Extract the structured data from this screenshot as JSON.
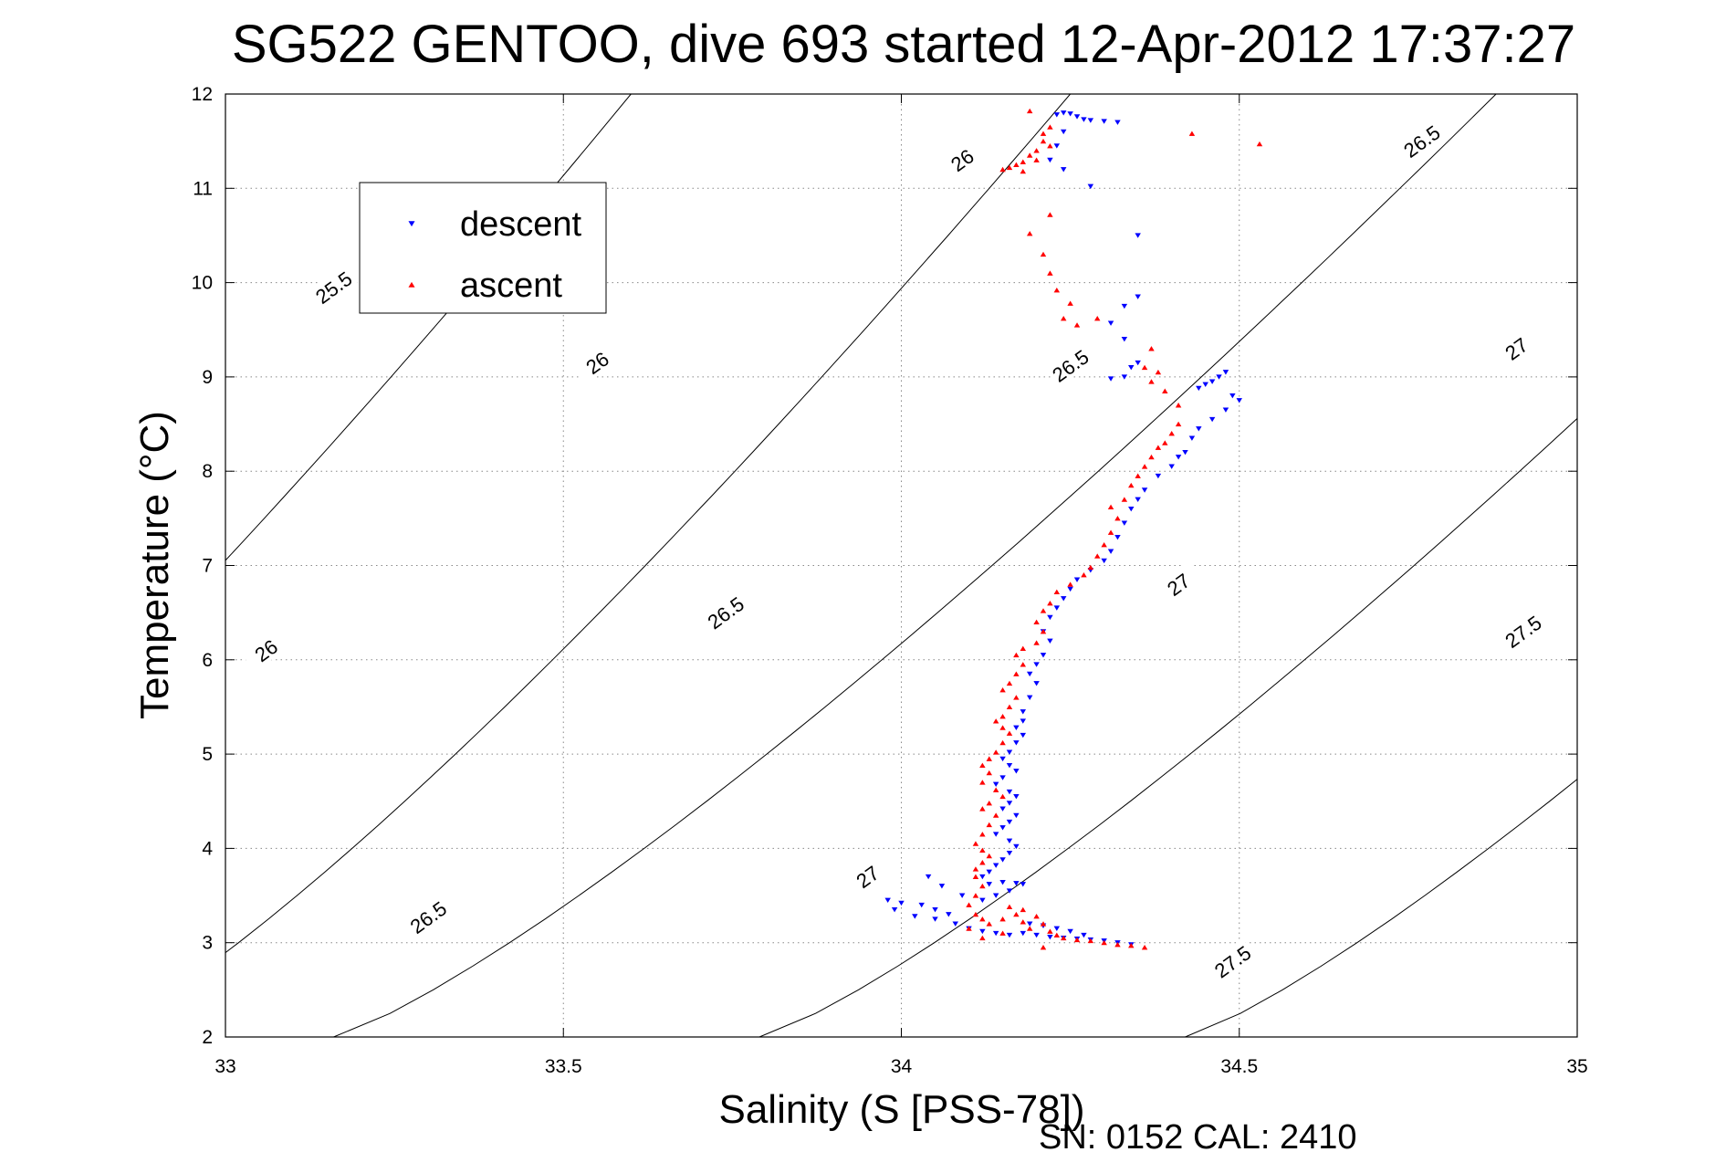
{
  "chart_data": {
    "type": "scatter",
    "title": "SG522 GENTOO, dive 693 started 12-Apr-2012 17:37:27",
    "xlabel": "Salinity (S [PSS-78])",
    "ylabel": "Temperature (°C)",
    "xlim": [
      33,
      35
    ],
    "ylim": [
      2,
      12
    ],
    "xticks": [
      "33",
      "33.5",
      "34",
      "34.5",
      "35"
    ],
    "yticks": [
      "2",
      "3",
      "4",
      "5",
      "6",
      "7",
      "8",
      "9",
      "10",
      "11",
      "12"
    ],
    "grid": "dotted",
    "legend_position": "top-left",
    "footer": "SN: 0152  CAL: 2410",
    "colors": {
      "descent": "#0000ff",
      "ascent": "#ff0000",
      "contour": "#000000"
    },
    "density_contours": [
      {
        "label": "25.5",
        "s_at_t12": 33.6,
        "s_at_t2": 32.2
      },
      {
        "label": "26",
        "s_at_t12": 34.25,
        "s_at_t2": 32.8
      },
      {
        "label": "26.5",
        "s_at_t12": 34.88,
        "s_at_t2": 33.16
      },
      {
        "label": "27",
        "s_at_t12": 35.5,
        "s_at_t2": 33.79
      },
      {
        "label": "27.5",
        "s_at_t12": 36.1,
        "s_at_t2": 34.42
      }
    ],
    "contour_labels": [
      {
        "text": "25.5",
        "s": 33.16,
        "t": 9.95
      },
      {
        "text": "26",
        "s": 33.06,
        "t": 6.1
      },
      {
        "text": "26",
        "s": 33.55,
        "t": 9.15
      },
      {
        "text": "26",
        "s": 34.09,
        "t": 11.3
      },
      {
        "text": "26.5",
        "s": 33.3,
        "t": 3.27
      },
      {
        "text": "26.5",
        "s": 33.74,
        "t": 6.5
      },
      {
        "text": "26.5",
        "s": 34.25,
        "t": 9.12
      },
      {
        "text": "26.5",
        "s": 34.77,
        "t": 11.5
      },
      {
        "text": "27",
        "s": 33.95,
        "t": 3.7
      },
      {
        "text": "27",
        "s": 34.41,
        "t": 6.8
      },
      {
        "text": "27",
        "s": 34.91,
        "t": 9.3
      },
      {
        "text": "27.5",
        "s": 34.49,
        "t": 2.8
      },
      {
        "text": "27.5",
        "s": 34.92,
        "t": 6.3
      }
    ],
    "series": [
      {
        "name": "descent",
        "marker": "triangle-down",
        "points": [
          [
            34.23,
            11.78
          ],
          [
            34.24,
            11.8
          ],
          [
            34.25,
            11.79
          ],
          [
            34.26,
            11.76
          ],
          [
            34.27,
            11.73
          ],
          [
            34.28,
            11.72
          ],
          [
            34.3,
            11.71
          ],
          [
            34.32,
            11.7
          ],
          [
            34.24,
            11.6
          ],
          [
            34.23,
            11.45
          ],
          [
            34.22,
            11.3
          ],
          [
            34.24,
            11.2
          ],
          [
            34.28,
            11.02
          ],
          [
            34.35,
            10.5
          ],
          [
            34.35,
            9.85
          ],
          [
            34.33,
            9.75
          ],
          [
            34.31,
            9.57
          ],
          [
            34.33,
            9.4
          ],
          [
            34.34,
            9.1
          ],
          [
            34.35,
            9.15
          ],
          [
            34.33,
            9.0
          ],
          [
            34.31,
            8.98
          ],
          [
            34.48,
            9.05
          ],
          [
            34.47,
            9.0
          ],
          [
            34.46,
            8.95
          ],
          [
            34.45,
            8.92
          ],
          [
            34.44,
            8.88
          ],
          [
            34.49,
            8.8
          ],
          [
            34.5,
            8.75
          ],
          [
            34.48,
            8.65
          ],
          [
            34.46,
            8.55
          ],
          [
            34.44,
            8.45
          ],
          [
            34.43,
            8.35
          ],
          [
            34.42,
            8.2
          ],
          [
            34.41,
            8.15
          ],
          [
            34.4,
            8.05
          ],
          [
            34.38,
            7.95
          ],
          [
            34.36,
            7.8
          ],
          [
            34.35,
            7.7
          ],
          [
            34.34,
            7.6
          ],
          [
            34.33,
            7.45
          ],
          [
            34.32,
            7.3
          ],
          [
            34.31,
            7.15
          ],
          [
            34.3,
            7.05
          ],
          [
            34.28,
            6.95
          ],
          [
            34.26,
            6.85
          ],
          [
            34.25,
            6.75
          ],
          [
            34.24,
            6.65
          ],
          [
            34.23,
            6.55
          ],
          [
            34.22,
            6.45
          ],
          [
            34.21,
            6.3
          ],
          [
            34.22,
            6.2
          ],
          [
            34.21,
            6.05
          ],
          [
            34.2,
            5.95
          ],
          [
            34.19,
            5.85
          ],
          [
            34.2,
            5.75
          ],
          [
            34.19,
            5.6
          ],
          [
            34.18,
            5.45
          ],
          [
            34.18,
            5.35
          ],
          [
            34.17,
            5.28
          ],
          [
            34.18,
            5.2
          ],
          [
            34.17,
            5.12
          ],
          [
            34.16,
            5.02
          ],
          [
            34.15,
            4.95
          ],
          [
            34.16,
            4.88
          ],
          [
            34.17,
            4.82
          ],
          [
            34.15,
            4.75
          ],
          [
            34.14,
            4.68
          ],
          [
            34.16,
            4.6
          ],
          [
            34.17,
            4.55
          ],
          [
            34.16,
            4.48
          ],
          [
            34.15,
            4.42
          ],
          [
            34.17,
            4.35
          ],
          [
            34.16,
            4.28
          ],
          [
            34.15,
            4.22
          ],
          [
            34.14,
            4.15
          ],
          [
            34.16,
            4.08
          ],
          [
            34.17,
            4.02
          ],
          [
            34.16,
            3.95
          ],
          [
            34.15,
            3.88
          ],
          [
            34.14,
            3.82
          ],
          [
            34.13,
            3.75
          ],
          [
            34.12,
            3.7
          ],
          [
            34.13,
            3.62
          ],
          [
            34.15,
            3.64
          ],
          [
            34.17,
            3.63
          ],
          [
            34.18,
            3.62
          ],
          [
            34.16,
            3.55
          ],
          [
            34.14,
            3.5
          ],
          [
            34.12,
            3.45
          ],
          [
            33.98,
            3.45
          ],
          [
            34.0,
            3.42
          ],
          [
            34.03,
            3.4
          ],
          [
            34.05,
            3.35
          ],
          [
            34.07,
            3.3
          ],
          [
            33.99,
            3.35
          ],
          [
            34.02,
            3.28
          ],
          [
            34.05,
            3.25
          ],
          [
            34.08,
            3.2
          ],
          [
            34.04,
            3.7
          ],
          [
            34.06,
            3.6
          ],
          [
            34.09,
            3.5
          ],
          [
            34.1,
            3.15
          ],
          [
            34.12,
            3.12
          ],
          [
            34.14,
            3.1
          ],
          [
            34.16,
            3.08
          ],
          [
            34.18,
            3.1
          ],
          [
            34.2,
            3.08
          ],
          [
            34.22,
            3.06
          ],
          [
            34.24,
            3.05
          ],
          [
            34.26,
            3.04
          ],
          [
            34.28,
            3.03
          ],
          [
            34.3,
            3.02
          ],
          [
            34.32,
            3.0
          ],
          [
            34.34,
            2.98
          ],
          [
            34.19,
            3.2
          ],
          [
            34.21,
            3.18
          ],
          [
            34.23,
            3.15
          ],
          [
            34.25,
            3.12
          ],
          [
            34.27,
            3.08
          ]
        ]
      },
      {
        "name": "ascent",
        "marker": "triangle-up",
        "points": [
          [
            34.19,
            11.82
          ],
          [
            34.22,
            11.65
          ],
          [
            34.21,
            11.58
          ],
          [
            34.21,
            11.5
          ],
          [
            34.22,
            11.45
          ],
          [
            34.2,
            11.4
          ],
          [
            34.19,
            11.35
          ],
          [
            34.2,
            11.3
          ],
          [
            34.18,
            11.28
          ],
          [
            34.17,
            11.25
          ],
          [
            34.16,
            11.22
          ],
          [
            34.15,
            11.2
          ],
          [
            34.18,
            11.18
          ],
          [
            34.43,
            11.58
          ],
          [
            34.53,
            11.47
          ],
          [
            34.22,
            10.72
          ],
          [
            34.19,
            10.52
          ],
          [
            34.21,
            10.3
          ],
          [
            34.22,
            10.1
          ],
          [
            34.23,
            9.92
          ],
          [
            34.25,
            9.78
          ],
          [
            34.24,
            9.62
          ],
          [
            34.26,
            9.55
          ],
          [
            34.29,
            9.62
          ],
          [
            34.37,
            9.3
          ],
          [
            34.36,
            9.1
          ],
          [
            34.38,
            9.05
          ],
          [
            34.37,
            8.95
          ],
          [
            34.39,
            8.85
          ],
          [
            34.41,
            8.7
          ],
          [
            34.41,
            8.5
          ],
          [
            34.4,
            8.4
          ],
          [
            34.39,
            8.3
          ],
          [
            34.38,
            8.25
          ],
          [
            34.37,
            8.15
          ],
          [
            34.36,
            8.05
          ],
          [
            34.35,
            7.95
          ],
          [
            34.34,
            7.85
          ],
          [
            34.33,
            7.7
          ],
          [
            34.31,
            7.62
          ],
          [
            34.32,
            7.5
          ],
          [
            34.31,
            7.35
          ],
          [
            34.3,
            7.22
          ],
          [
            34.29,
            7.1
          ],
          [
            34.28,
            6.98
          ],
          [
            34.27,
            6.9
          ],
          [
            34.25,
            6.8
          ],
          [
            34.23,
            6.72
          ],
          [
            34.22,
            6.6
          ],
          [
            34.21,
            6.52
          ],
          [
            34.2,
            6.4
          ],
          [
            34.21,
            6.3
          ],
          [
            34.2,
            6.18
          ],
          [
            34.18,
            6.12
          ],
          [
            34.17,
            6.05
          ],
          [
            34.18,
            5.95
          ],
          [
            34.17,
            5.85
          ],
          [
            34.16,
            5.75
          ],
          [
            34.15,
            5.68
          ],
          [
            34.17,
            5.6
          ],
          [
            34.16,
            5.5
          ],
          [
            34.15,
            5.4
          ],
          [
            34.14,
            5.35
          ],
          [
            34.15,
            5.28
          ],
          [
            34.16,
            5.22
          ],
          [
            34.15,
            5.12
          ],
          [
            34.14,
            5.02
          ],
          [
            34.13,
            4.95
          ],
          [
            34.12,
            4.88
          ],
          [
            34.13,
            4.8
          ],
          [
            34.12,
            4.7
          ],
          [
            34.14,
            4.62
          ],
          [
            34.15,
            4.55
          ],
          [
            34.13,
            4.48
          ],
          [
            34.12,
            4.42
          ],
          [
            34.14,
            4.35
          ],
          [
            34.13,
            4.25
          ],
          [
            34.12,
            4.15
          ],
          [
            34.11,
            4.05
          ],
          [
            34.12,
            3.98
          ],
          [
            34.13,
            3.92
          ],
          [
            34.12,
            3.85
          ],
          [
            34.11,
            3.78
          ],
          [
            34.11,
            3.7
          ],
          [
            34.12,
            3.6
          ],
          [
            34.11,
            3.5
          ],
          [
            34.1,
            3.4
          ],
          [
            34.11,
            3.3
          ],
          [
            34.12,
            3.25
          ],
          [
            34.13,
            3.2
          ],
          [
            34.15,
            3.25
          ],
          [
            34.17,
            3.3
          ],
          [
            34.18,
            3.22
          ],
          [
            34.19,
            3.15
          ],
          [
            34.2,
            3.28
          ],
          [
            34.21,
            3.2
          ],
          [
            34.22,
            3.12
          ],
          [
            34.23,
            3.08
          ],
          [
            34.24,
            3.05
          ],
          [
            34.26,
            3.03
          ],
          [
            34.28,
            3.02
          ],
          [
            34.3,
            3.0
          ],
          [
            34.32,
            2.98
          ],
          [
            34.34,
            2.97
          ],
          [
            34.36,
            2.95
          ],
          [
            34.1,
            3.15
          ],
          [
            34.12,
            3.05
          ],
          [
            34.15,
            3.1
          ],
          [
            34.16,
            3.38
          ],
          [
            34.18,
            3.35
          ],
          [
            34.21,
            2.95
          ]
        ]
      }
    ]
  }
}
